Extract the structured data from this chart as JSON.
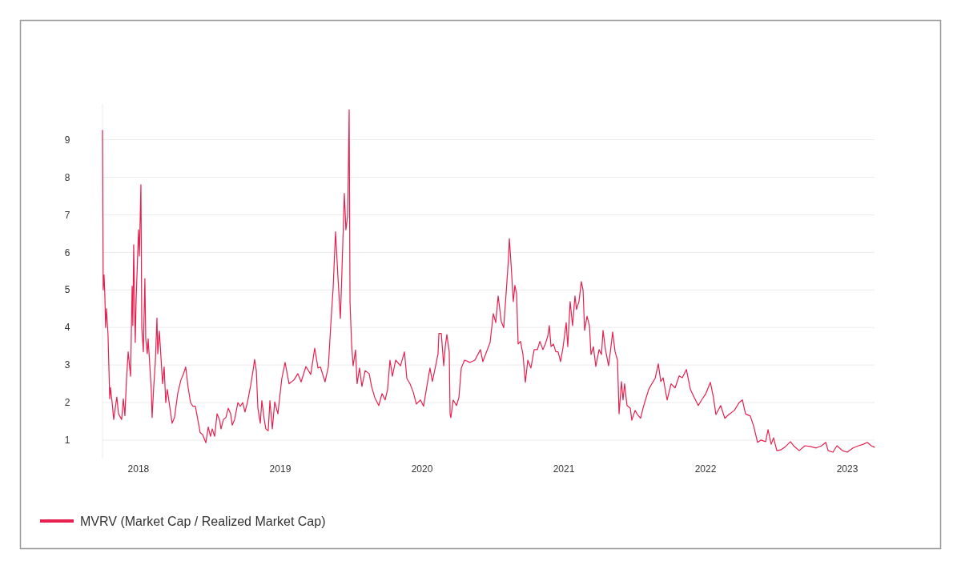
{
  "chart_data": {
    "type": "line",
    "xlim": [
      2017.746,
      2023.192
    ],
    "xticks": [
      2018,
      2019,
      2020,
      2021,
      2022,
      2023
    ],
    "ylim": [
      0.53,
      9.95
    ],
    "yticks": [
      1,
      2,
      3,
      4,
      5,
      6,
      7,
      8,
      9
    ],
    "grid": "y",
    "legend": "bottom left",
    "line_style": "solid",
    "marker": "none",
    "series": [
      {
        "name": "MVRV (Market Cap / Realized Market Cap)",
        "color": "#e8204f",
        "x": [
          2017.746,
          2017.751,
          2017.757,
          2017.763,
          2017.768,
          2017.774,
          2017.785,
          2017.797,
          2017.802,
          2017.814,
          2017.825,
          2017.847,
          2017.859,
          2017.881,
          2017.893,
          2017.904,
          2017.915,
          2017.927,
          2017.944,
          2017.955,
          2017.96,
          2017.966,
          2017.977,
          2017.983,
          2018.0,
          2018.006,
          2018.017,
          2018.023,
          2018.034,
          2018.045,
          2018.051,
          2018.062,
          2018.068,
          2018.09,
          2018.096,
          2018.107,
          2018.119,
          2018.13,
          2018.136,
          2018.147,
          2018.17,
          2018.181,
          2018.192,
          2018.203,
          2018.22,
          2018.237,
          2018.254,
          2018.277,
          2018.299,
          2018.316,
          2018.333,
          2018.35,
          2018.367,
          2018.384,
          2018.401,
          2018.418,
          2018.435,
          2018.452,
          2018.475,
          2018.492,
          2018.508,
          2018.52,
          2018.537,
          2018.554,
          2018.571,
          2018.582,
          2018.599,
          2018.616,
          2018.633,
          2018.65,
          2018.661,
          2018.678,
          2018.701,
          2018.718,
          2018.735,
          2018.751,
          2018.768,
          2018.791,
          2018.808,
          2018.819,
          2018.831,
          2018.842,
          2018.859,
          2018.87,
          2018.887,
          2018.898,
          2018.915,
          2018.927,
          2018.944,
          2018.961,
          2018.983,
          2019.011,
          2019.034,
          2019.062,
          2019.096,
          2019.124,
          2019.147,
          2019.181,
          2019.215,
          2019.243,
          2019.266,
          2019.283,
          2019.316,
          2019.339,
          2019.356,
          2019.373,
          2019.39,
          2019.407,
          2019.424,
          2019.435,
          2019.452,
          2019.463,
          2019.475,
          2019.48,
          2019.486,
          2019.492,
          2019.503,
          2019.514,
          2019.531,
          2019.542,
          2019.559,
          2019.576,
          2019.599,
          2019.627,
          2019.644,
          2019.667,
          2019.695,
          2019.718,
          2019.74,
          2019.757,
          2019.774,
          2019.791,
          2019.814,
          2019.848,
          2019.876,
          2019.893,
          2019.915,
          2019.938,
          2019.96,
          2019.989,
          2020.011,
          2020.034,
          2020.056,
          2020.073,
          2020.096,
          2020.113,
          2020.119,
          2020.136,
          2020.153,
          2020.164,
          2020.175,
          2020.192,
          2020.198,
          2020.203,
          2020.22,
          2020.243,
          2020.26,
          2020.277,
          2020.3,
          2020.339,
          2020.373,
          2020.412,
          2020.429,
          2020.48,
          2020.503,
          2020.52,
          2020.537,
          2020.559,
          2020.576,
          2020.593,
          2020.61,
          2020.616,
          2020.627,
          2020.644,
          2020.655,
          2020.667,
          2020.678,
          2020.695,
          2020.712,
          2020.729,
          2020.746,
          2020.768,
          2020.791,
          2020.814,
          2020.831,
          2020.853,
          2020.87,
          2020.887,
          2020.898,
          2020.91,
          2020.927,
          2020.944,
          2020.96,
          2020.977,
          2020.994,
          2021.017,
          2021.028,
          2021.045,
          2021.062,
          2021.079,
          2021.09,
          2021.107,
          2021.124,
          2021.136,
          2021.147,
          2021.164,
          2021.181,
          2021.192,
          2021.209,
          2021.226,
          2021.249,
          2021.266,
          2021.277,
          2021.294,
          2021.316,
          2021.333,
          2021.345,
          2021.362,
          2021.379,
          2021.39,
          2021.407,
          2021.418,
          2021.429,
          2021.446,
          2021.469,
          2021.48,
          2021.503,
          2021.52,
          2021.542,
          2021.559,
          2021.576,
          2021.599,
          2021.621,
          2021.644,
          2021.667,
          2021.684,
          2021.701,
          2021.729,
          2021.757,
          2021.785,
          2021.814,
          2021.836,
          2021.865,
          2021.893,
          2021.921,
          2021.949,
          2021.972,
          2022.0,
          2022.034,
          2022.056,
          2022.073,
          2022.107,
          2022.136,
          2022.164,
          2022.203,
          2022.237,
          2022.26,
          2022.282,
          2022.316,
          2022.339,
          2022.367,
          2022.39,
          2022.424,
          2022.441,
          2022.463,
          2022.48,
          2022.503,
          2022.531,
          2022.565,
          2022.599,
          2022.621,
          2022.661,
          2022.701,
          2022.74,
          2022.78,
          2022.819,
          2022.848,
          2022.865,
          2022.899,
          2022.927,
          2022.966,
          2023.0,
          2023.04,
          2023.079,
          2023.113,
          2023.141,
          2023.169,
          2023.192
        ],
        "values": [
          9.25,
          5.0,
          5.4,
          4.8,
          4.0,
          4.5,
          3.8,
          2.1,
          2.4,
          2.0,
          1.55,
          2.15,
          1.7,
          1.55,
          2.1,
          1.65,
          2.6,
          3.35,
          2.7,
          5.1,
          4.05,
          6.2,
          3.6,
          4.7,
          6.6,
          5.9,
          7.8,
          4.0,
          3.35,
          5.3,
          3.7,
          3.3,
          3.7,
          2.35,
          1.6,
          2.4,
          3.1,
          4.25,
          3.3,
          3.9,
          2.5,
          2.95,
          2.0,
          2.35,
          1.9,
          1.45,
          1.6,
          2.25,
          2.6,
          2.75,
          2.95,
          2.4,
          2.0,
          1.9,
          1.9,
          1.55,
          1.2,
          1.15,
          0.93,
          1.35,
          1.1,
          1.3,
          1.1,
          1.7,
          1.55,
          1.3,
          1.55,
          1.6,
          1.85,
          1.7,
          1.4,
          1.55,
          2.0,
          1.9,
          2.0,
          1.75,
          2.0,
          2.45,
          2.85,
          3.15,
          2.85,
          1.85,
          1.45,
          2.05,
          1.55,
          1.3,
          1.25,
          2.05,
          1.3,
          2.02,
          1.7,
          2.64,
          3.07,
          2.5,
          2.6,
          2.77,
          2.55,
          2.96,
          2.75,
          3.45,
          2.92,
          2.95,
          2.55,
          2.95,
          4.05,
          5.05,
          6.55,
          5.33,
          4.24,
          5.48,
          7.57,
          6.6,
          6.97,
          8.08,
          9.8,
          4.69,
          3.56,
          2.98,
          3.4,
          2.5,
          2.92,
          2.43,
          2.85,
          2.77,
          2.43,
          2.13,
          1.92,
          2.24,
          2.07,
          2.35,
          3.13,
          2.7,
          3.13,
          2.98,
          3.35,
          2.64,
          2.5,
          2.28,
          1.96,
          2.07,
          1.9,
          2.43,
          2.92,
          2.56,
          2.98,
          3.3,
          3.84,
          3.84,
          2.98,
          3.49,
          3.81,
          3.35,
          1.7,
          1.6,
          2.07,
          1.92,
          2.13,
          2.92,
          3.13,
          3.07,
          3.13,
          3.41,
          3.09,
          3.6,
          4.37,
          4.13,
          4.84,
          4.16,
          3.99,
          4.9,
          5.84,
          6.37,
          5.75,
          4.69,
          5.12,
          4.9,
          3.56,
          3.63,
          3.28,
          2.54,
          3.13,
          2.92,
          3.41,
          3.41,
          3.63,
          3.41,
          3.56,
          3.77,
          4.05,
          3.49,
          3.56,
          3.35,
          3.35,
          3.09,
          3.45,
          4.13,
          3.49,
          4.69,
          4.05,
          4.84,
          4.48,
          4.69,
          5.22,
          4.99,
          3.92,
          4.3,
          4.05,
          3.28,
          3.49,
          2.96,
          3.41,
          3.28,
          3.92,
          3.41,
          2.98,
          3.49,
          3.88,
          3.35,
          3.13,
          1.7,
          2.56,
          2.07,
          2.5,
          1.92,
          1.85,
          1.53,
          1.79,
          1.68,
          1.58,
          1.85,
          2.07,
          2.35,
          2.5,
          2.64,
          3.03,
          2.56,
          2.66,
          2.07,
          2.5,
          2.39,
          2.71,
          2.66,
          2.88,
          2.35,
          2.13,
          1.92,
          2.07,
          2.22,
          2.54,
          2.13,
          1.68,
          1.92,
          1.58,
          1.68,
          1.79,
          2.0,
          2.07,
          1.7,
          1.64,
          1.38,
          0.94,
          1.0,
          0.96,
          1.28,
          0.89,
          1.06,
          0.72,
          0.74,
          0.83,
          0.96,
          0.85,
          0.72,
          0.85,
          0.83,
          0.79,
          0.85,
          0.94,
          0.72,
          0.68,
          0.85,
          0.72,
          0.68,
          0.79,
          0.85,
          0.89,
          0.94,
          0.85,
          0.81
        ]
      }
    ]
  }
}
